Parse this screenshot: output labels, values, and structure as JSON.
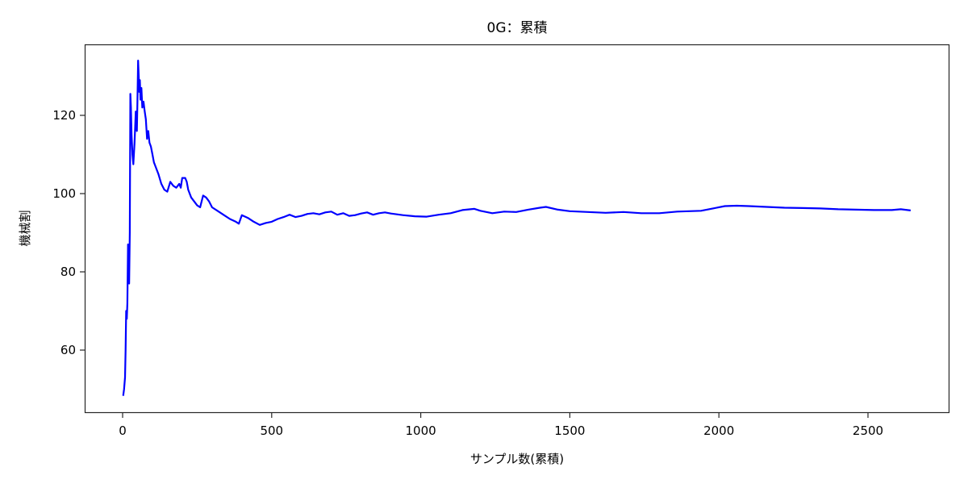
{
  "chart_data": {
    "type": "line",
    "title": "0G：累積",
    "xlabel": "サンプル数(累積)",
    "ylabel": "機械割",
    "xlim": [
      -125,
      2780
    ],
    "ylim": [
      44.2,
      137.6
    ],
    "xticks": [
      0,
      500,
      1000,
      1500,
      2000,
      2500
    ],
    "yticks": [
      60,
      80,
      100,
      120
    ],
    "xtick_labels": [
      "0",
      "500",
      "1000",
      "1500",
      "2000",
      "2500"
    ],
    "ytick_labels": [
      "60",
      "80",
      "100",
      "120"
    ],
    "grid": false,
    "legend": null,
    "series": [
      {
        "name": "機械割",
        "color": "#0000ff",
        "x": [
          2,
          5,
          8,
          10,
          12,
          14,
          16,
          18,
          20,
          22,
          24,
          26,
          28,
          30,
          33,
          36,
          40,
          44,
          48,
          50,
          52,
          54,
          56,
          58,
          60,
          63,
          66,
          70,
          74,
          78,
          82,
          86,
          90,
          95,
          100,
          105,
          110,
          115,
          120,
          130,
          140,
          150,
          160,
          170,
          180,
          190,
          195,
          200,
          210,
          215,
          220,
          230,
          240,
          250,
          260,
          270,
          280,
          290,
          300,
          320,
          340,
          360,
          380,
          390,
          400,
          420,
          440,
          460,
          480,
          500,
          520,
          540,
          560,
          580,
          600,
          620,
          640,
          660,
          680,
          700,
          720,
          740,
          760,
          780,
          800,
          820,
          840,
          860,
          880,
          900,
          940,
          980,
          1020,
          1060,
          1100,
          1140,
          1180,
          1200,
          1240,
          1280,
          1320,
          1360,
          1400,
          1420,
          1460,
          1500,
          1560,
          1620,
          1680,
          1740,
          1800,
          1860,
          1900,
          1940,
          1980,
          2020,
          2060,
          2100,
          2160,
          2220,
          2280,
          2340,
          2400,
          2460,
          2520,
          2580,
          2610,
          2643
        ],
        "y": [
          48.3,
          50,
          53,
          60,
          70,
          68,
          72,
          87,
          80,
          77,
          90,
          125.5,
          122,
          115,
          110,
          107.5,
          113,
          121,
          116,
          125,
          134,
          130,
          126,
          129,
          124,
          127,
          122,
          123.5,
          121,
          119,
          114,
          116,
          113,
          112,
          110,
          108,
          107,
          106,
          105,
          102.5,
          101,
          100.5,
          103,
          102,
          101.5,
          102.5,
          101.5,
          104,
          104,
          103,
          101,
          99,
          98,
          97,
          96.5,
          99.5,
          99,
          98,
          96.5,
          95.5,
          94.5,
          93.5,
          92.8,
          92.3,
          94.5,
          93.8,
          92.8,
          92,
          92.5,
          92.8,
          93.5,
          94,
          94.6,
          94,
          94.3,
          94.8,
          95,
          94.7,
          95.2,
          95.4,
          94.6,
          95,
          94.3,
          94.5,
          94.9,
          95.2,
          94.6,
          95.0,
          95.2,
          94.9,
          94.5,
          94.2,
          94.1,
          94.6,
          95.0,
          95.8,
          96.1,
          95.6,
          95.0,
          95.4,
          95.3,
          95.9,
          96.4,
          96.6,
          95.9,
          95.5,
          95.3,
          95.1,
          95.3,
          95.0,
          95.0,
          95.4,
          95.5,
          95.6,
          96.2,
          96.8,
          96.9,
          96.8,
          96.6,
          96.4,
          96.3,
          96.2,
          96.0,
          95.9,
          95.8,
          95.8,
          96.0,
          95.7
        ]
      }
    ]
  }
}
